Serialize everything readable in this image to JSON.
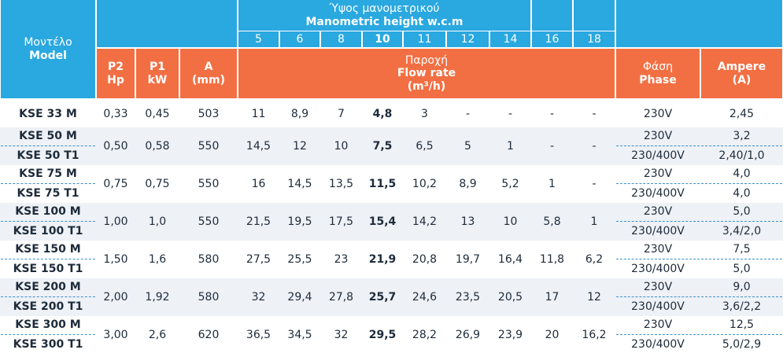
{
  "header": {
    "model": [
      "Μοντέλο",
      "Model"
    ],
    "height": [
      "Ύψος μανομετρικού",
      "Manometric height w.c.m"
    ],
    "heights": [
      5,
      6,
      8,
      10,
      11,
      12,
      14,
      16,
      18
    ],
    "p2": [
      "P2",
      "Hp"
    ],
    "p1": [
      "P1",
      "kW"
    ],
    "a": [
      "A",
      "(mm)"
    ],
    "flow": [
      "Παροχή",
      "Flow rate",
      "(m³/h)"
    ],
    "phase": [
      "Φάση",
      "Phase"
    ],
    "ampere": [
      "Ampere",
      "(A)"
    ]
  },
  "rows": [
    {
      "p2": "0,33",
      "p1": "0,45",
      "a": "503",
      "flow": [
        "11",
        "8,9",
        "7",
        "4,8",
        "3",
        "-",
        "-",
        "-",
        "-"
      ],
      "models": [
        {
          "name": "KSE 33 M",
          "phase": "230V",
          "ampere": "2,45"
        }
      ]
    },
    {
      "p2": "0,50",
      "p1": "0,58",
      "a": "550",
      "flow": [
        "14,5",
        "12",
        "10",
        "7,5",
        "6,5",
        "5",
        "1",
        "-",
        "-"
      ],
      "models": [
        {
          "name": "KSE 50 M",
          "phase": "230V",
          "ampere": "3,2"
        },
        {
          "name": "KSE 50 T1",
          "phase": "230/400V",
          "ampere": "2,40/1,0"
        }
      ]
    },
    {
      "p2": "0,75",
      "p1": "0,75",
      "a": "550",
      "flow": [
        "16",
        "14,5",
        "13,5",
        "11,5",
        "10,2",
        "8,9",
        "5,2",
        "1",
        "-"
      ],
      "models": [
        {
          "name": "KSE 75 M",
          "phase": "230V",
          "ampere": "4,0"
        },
        {
          "name": "KSE 75 T1",
          "phase": "230/400V",
          "ampere": "4,0"
        }
      ]
    },
    {
      "p2": "1,00",
      "p1": "1,0",
      "a": "550",
      "flow": [
        "21,5",
        "19,5",
        "17,5",
        "15,4",
        "14,2",
        "13",
        "10",
        "5,8",
        "1"
      ],
      "models": [
        {
          "name": "KSE 100 M",
          "phase": "230V",
          "ampere": "5,0"
        },
        {
          "name": "KSE 100 T1",
          "phase": "230/400V",
          "ampere": "3,4/2,0"
        }
      ]
    },
    {
      "p2": "1,50",
      "p1": "1,6",
      "a": "580",
      "flow": [
        "27,5",
        "25,5",
        "23",
        "21,9",
        "20,8",
        "19,7",
        "16,4",
        "11,8",
        "6,2"
      ],
      "models": [
        {
          "name": "KSE 150 M",
          "phase": "230V",
          "ampere": "7,5"
        },
        {
          "name": "KSE 150 T1",
          "phase": "230/400V",
          "ampere": "5,0"
        }
      ]
    },
    {
      "p2": "2,00",
      "p1": "1,92",
      "a": "580",
      "flow": [
        "32",
        "29,4",
        "27,8",
        "25,7",
        "24,6",
        "23,5",
        "20,5",
        "17",
        "12"
      ],
      "models": [
        {
          "name": "KSE 200 M",
          "phase": "230V",
          "ampere": "9,0"
        },
        {
          "name": "KSE 200 T1",
          "phase": "230/400V",
          "ampere": "3,6/2,2"
        }
      ]
    },
    {
      "p2": "3,00",
      "p1": "2,6",
      "a": "620",
      "flow": [
        "36,5",
        "34,5",
        "32",
        "29,5",
        "28,2",
        "26,9",
        "23,9",
        "20",
        "16,2"
      ],
      "models": [
        {
          "name": "KSE 300 M",
          "phase": "230V",
          "ampere": "12,5"
        },
        {
          "name": "KSE 300 T1",
          "phase": "230/400V",
          "ampere": "5,0/2,9"
        }
      ]
    }
  ]
}
